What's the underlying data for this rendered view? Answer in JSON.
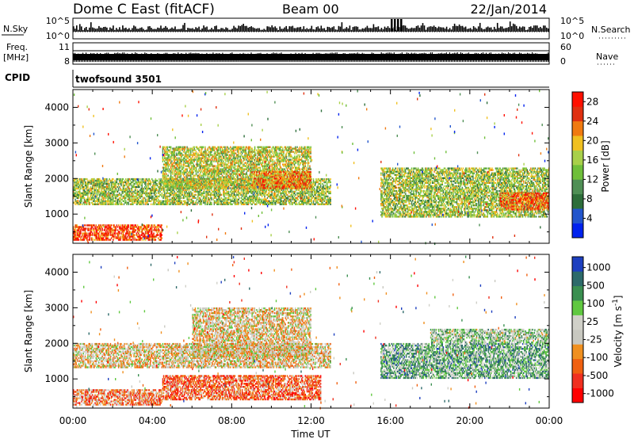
{
  "header": {
    "title": "Dome C East (fitACF)",
    "beam": "Beam 00",
    "date": "22/Jan/2014"
  },
  "strip_labels": {
    "nsky": "N.Sky",
    "freq_line1": "Freq.",
    "freq_line2": "[MHz]",
    "cpid": "CPID",
    "nsearch": "N.Search",
    "nave": "Nave",
    "cpid_value": "twofsound 3501"
  },
  "strip_ticks": {
    "nsky_left_top": "10^5",
    "nsky_left_bottom": "10^0",
    "nsky_right_top": "10^5",
    "nsky_right_bottom": "10^0",
    "freq_left_top": "11",
    "freq_left_bottom": "8",
    "nave_right_top": "60",
    "nave_right_bottom": "0"
  },
  "colors": {
    "power": [
      "#0022ee",
      "#2255cc",
      "#2d6e3a",
      "#4f8f55",
      "#6fbf3a",
      "#a8d04a",
      "#f0c020",
      "#f07a10",
      "#e03010",
      "#ff1000"
    ],
    "velocity": [
      "#ff0000",
      "#f03020",
      "#f06010",
      "#f09020",
      "#c8c8c0",
      "#d0d0c8",
      "#60c840",
      "#3a8f50",
      "#2d6a6a",
      "#1d3fbf"
    ]
  },
  "chart_data": [
    {
      "type": "heatmap",
      "name": "power-panel",
      "xlabel": "",
      "ylabel": "Slant Range [km]",
      "x_ticks": [
        "00:00",
        "04:00",
        "08:00",
        "12:00",
        "16:00",
        "20:00",
        "00:00"
      ],
      "xlim_hours": [
        0,
        24
      ],
      "ylim_km": [
        180,
        4500
      ],
      "y_ticks": [
        1000,
        2000,
        3000,
        4000
      ],
      "colorbar": {
        "label": "Power [dB]",
        "ticks": [
          4,
          8,
          12,
          16,
          20,
          24,
          28
        ],
        "range": [
          0,
          30
        ]
      },
      "bands": [
        {
          "t0": 0.0,
          "t1": 4.5,
          "r0": 250,
          "r1": 700,
          "level": 0.85
        },
        {
          "t0": 0.0,
          "t1": 13.0,
          "r0": 1250,
          "r1": 2000,
          "level": 0.5
        },
        {
          "t0": 4.5,
          "t1": 12.0,
          "r0": 1700,
          "r1": 2900,
          "level": 0.55
        },
        {
          "t0": 9.0,
          "t1": 12.0,
          "r0": 1700,
          "r1": 2200,
          "level": 0.75
        },
        {
          "t0": 15.5,
          "t1": 24.0,
          "r0": 900,
          "r1": 2300,
          "level": 0.5
        },
        {
          "t0": 21.5,
          "t1": 24.0,
          "r0": 1100,
          "r1": 1600,
          "level": 0.8
        }
      ]
    },
    {
      "type": "heatmap",
      "name": "velocity-panel",
      "xlabel": "Time UT",
      "ylabel": "Slant Range [km]",
      "x_ticks": [
        "00:00",
        "04:00",
        "08:00",
        "12:00",
        "16:00",
        "20:00",
        "00:00"
      ],
      "xlim_hours": [
        0,
        24
      ],
      "ylim_km": [
        180,
        4500
      ],
      "y_ticks": [
        1000,
        2000,
        3000,
        4000
      ],
      "colorbar": {
        "label": "Velocity [m s^-1]",
        "ticks": [
          "1000",
          "500",
          "100",
          "25",
          "-25",
          "-100",
          "-500",
          "-1000"
        ]
      },
      "bands": [
        {
          "t0": 0.0,
          "t1": 4.5,
          "r0": 250,
          "r1": 700,
          "level": 0.3
        },
        {
          "t0": 4.5,
          "t1": 12.5,
          "r0": 400,
          "r1": 1100,
          "level": 0.25
        },
        {
          "t0": 0.0,
          "t1": 13.0,
          "r0": 1300,
          "r1": 2000,
          "level": 0.45
        },
        {
          "t0": 6.0,
          "t1": 12.0,
          "r0": 1600,
          "r1": 3000,
          "level": 0.45
        },
        {
          "t0": 15.5,
          "t1": 24.0,
          "r0": 1000,
          "r1": 2000,
          "level": 0.7
        },
        {
          "t0": 18.0,
          "t1": 24.0,
          "r0": 2000,
          "r1": 2400,
          "level": 0.6
        }
      ]
    }
  ]
}
